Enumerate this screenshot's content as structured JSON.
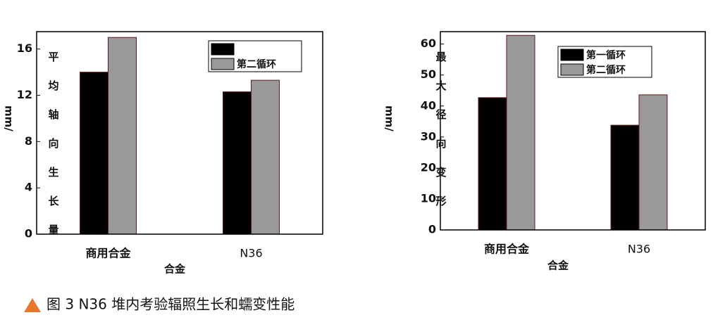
{
  "chart_data": [
    {
      "type": "bar",
      "y_unit": "mm/",
      "ylabel": "平均轴向生长量",
      "xlabel": "合金",
      "categories": [
        "商用合金",
        "N36"
      ],
      "series": [
        {
          "name": null,
          "color": "#000000",
          "values": [
            14,
            12.3
          ]
        },
        {
          "name": "第二循环",
          "color": "#999999",
          "values": [
            17,
            13.3
          ]
        }
      ],
      "ylim": [
        0,
        17.5
      ],
      "yticks": [
        0,
        4,
        8,
        12,
        16
      ],
      "legend": "upper right"
    },
    {
      "type": "bar",
      "y_unit": "mm/",
      "ylabel": "最大径向变形",
      "xlabel": "合金",
      "categories": [
        "商用合金",
        "N36"
      ],
      "series": [
        {
          "name": "第一循环",
          "color": "#000000",
          "values": [
            42.7,
            33.8
          ]
        },
        {
          "name": "第二循环",
          "color": "#999999",
          "values": [
            62.8,
            43.6
          ]
        }
      ],
      "ylim": [
        0,
        64
      ],
      "yticks": [
        0,
        10,
        20,
        30,
        40,
        50,
        60
      ],
      "legend": "upper right"
    }
  ],
  "caption": "图 3  N36 堆内考验辐照生长和蠕变性能"
}
